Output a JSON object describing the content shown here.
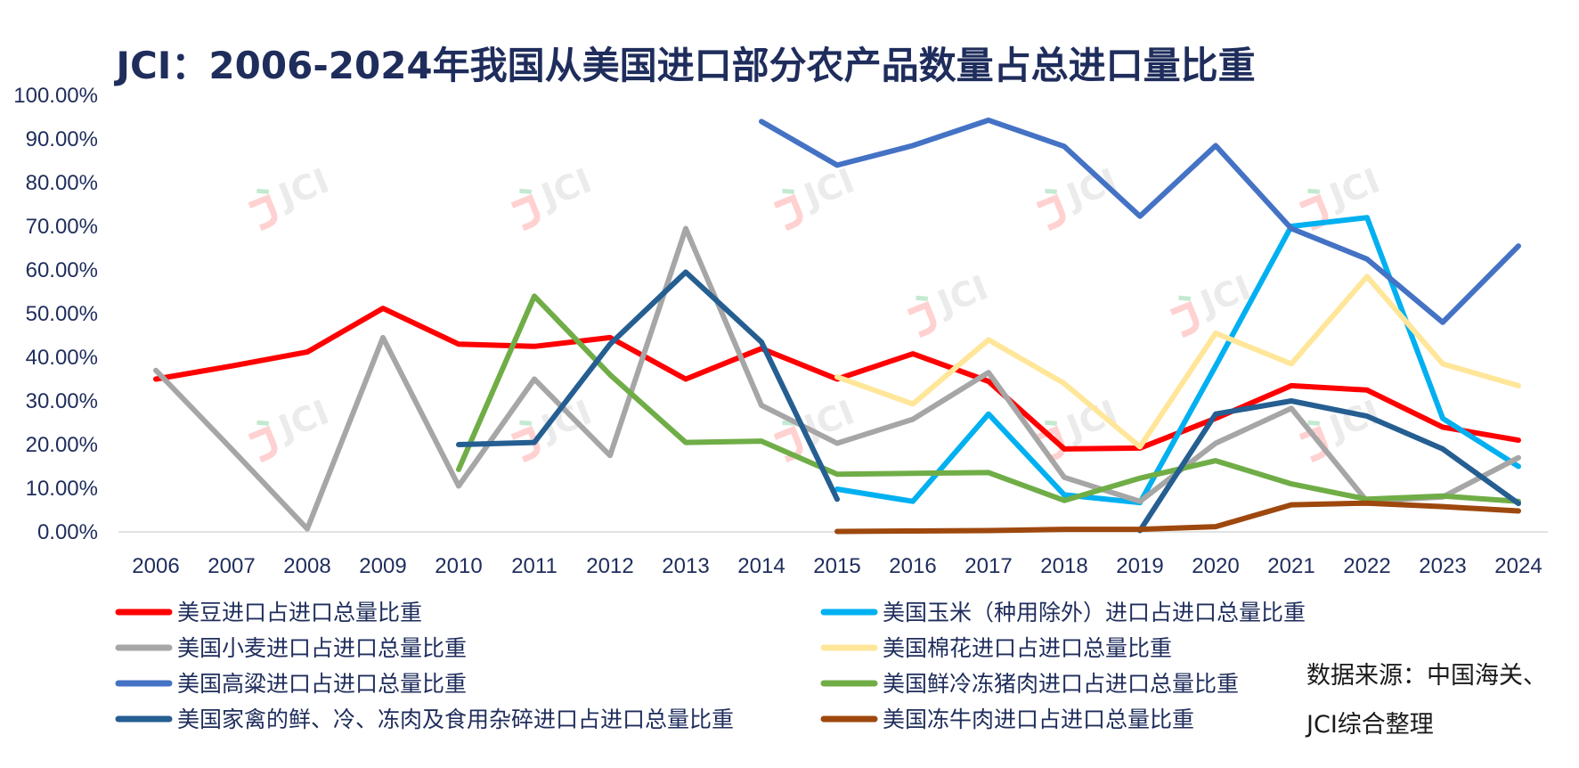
{
  "chart_data": {
    "type": "line",
    "title": "JCI：2006-2024年我国从美国进口部分农产品数量占总进口量比重",
    "xlabel": "",
    "ylabel": "",
    "ylim": [
      0,
      100
    ],
    "y_ticks": [
      "0.00%",
      "10.00%",
      "20.00%",
      "30.00%",
      "40.00%",
      "50.00%",
      "60.00%",
      "70.00%",
      "80.00%",
      "90.00%",
      "100.00%"
    ],
    "categories": [
      "2006",
      "2007",
      "2008",
      "2009",
      "2010",
      "2011",
      "2012",
      "2013",
      "2014",
      "2015",
      "2016",
      "2017",
      "2018",
      "2019",
      "2020",
      "2021",
      "2022",
      "2023",
      "2024"
    ],
    "series": [
      {
        "name": "美豆进口占进口总量比重",
        "color": "#ff0000",
        "values": [
          35,
          38,
          41.2,
          51.2,
          43,
          42.5,
          44.5,
          35,
          42,
          35,
          40.8,
          34.5,
          19,
          19.2,
          26,
          33.5,
          32.5,
          24,
          21
        ]
      },
      {
        "name": "美国玉米（种用除外）进口占进口总量比重",
        "color": "#00b0f0",
        "values": [
          null,
          null,
          null,
          null,
          null,
          null,
          null,
          null,
          null,
          9.8,
          7,
          27,
          8.5,
          6.7,
          38,
          70,
          72,
          26,
          15
        ]
      },
      {
        "name": "美国小麦进口占进口总量比重",
        "color": "#a6a6a6",
        "values": [
          37,
          19,
          0.7,
          44.5,
          10.5,
          35,
          17.5,
          69.5,
          29,
          20.3,
          25.8,
          36.5,
          12.5,
          7,
          20.3,
          28.3,
          7,
          8,
          17
        ]
      },
      {
        "name": "美国棉花进口占进口总量比重",
        "color": "#ffe699",
        "values": [
          null,
          null,
          null,
          null,
          null,
          null,
          null,
          null,
          null,
          35.5,
          29.3,
          44,
          34,
          19.5,
          45.5,
          38.5,
          58.5,
          38.5,
          33.5
        ]
      },
      {
        "name": "美国高粱进口占进口总量比重",
        "color": "#4472c4",
        "values": [
          null,
          null,
          null,
          null,
          null,
          null,
          null,
          null,
          94,
          84,
          88.5,
          94.3,
          88.3,
          72.3,
          88.5,
          69.5,
          62.5,
          48,
          65.5
        ]
      },
      {
        "name": "美国鲜冷冻猪肉进口占进口总量比重",
        "color": "#70ad47",
        "values": [
          null,
          null,
          null,
          null,
          14.3,
          54,
          36,
          20.5,
          20.8,
          13.2,
          13.4,
          13.6,
          7.2,
          12.3,
          16.3,
          11,
          7.5,
          8.2,
          7
        ]
      },
      {
        "name": "美国家禽的鲜、冷、冻肉及食用杂碎进口占进口总量比重",
        "color": "#255e91",
        "values": [
          null,
          null,
          null,
          null,
          20,
          20.5,
          43,
          59.5,
          43.5,
          7.5,
          null,
          null,
          null,
          0.3,
          27,
          30,
          26.5,
          19,
          6.5
        ]
      },
      {
        "name": "美国冻牛肉进口占进口总量比重",
        "color": "#9e480e",
        "values": [
          null,
          null,
          null,
          null,
          null,
          null,
          null,
          null,
          null,
          0.1,
          0.2,
          0.3,
          0.6,
          0.6,
          1.2,
          6.2,
          6.6,
          5.8,
          4.8
        ]
      }
    ],
    "legend": "bottom",
    "grid": false
  },
  "source": {
    "line1": "数据来源：中国海关、",
    "line2": "JCI综合整理"
  },
  "watermark": {
    "text": "JCI"
  }
}
